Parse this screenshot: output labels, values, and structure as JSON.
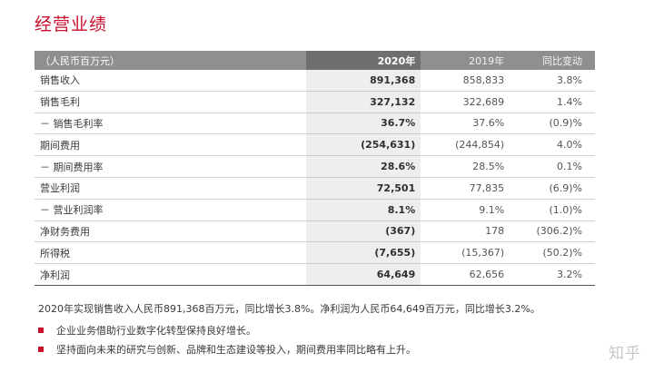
{
  "title": "经营业绩",
  "table": {
    "header": {
      "label": "（人民币百万元）",
      "cur": "2020年",
      "prev": "2019年",
      "chg": "同比变动"
    },
    "rows": [
      {
        "label": "销售收入",
        "cur": "891,368",
        "prev": "858,833",
        "chg": "3.8%"
      },
      {
        "label": "销售毛利",
        "cur": "327,132",
        "prev": "322,689",
        "chg": "1.4%"
      },
      {
        "label": "－ 销售毛利率",
        "cur": "36.7%",
        "prev": "37.6%",
        "chg": "(0.9)%"
      },
      {
        "label": "期间费用",
        "cur": "(254,631)",
        "prev": "(244,854)",
        "chg": "4.0%"
      },
      {
        "label": "－ 期间费用率",
        "cur": "28.6%",
        "prev": "28.5%",
        "chg": "0.1%"
      },
      {
        "label": "营业利润",
        "cur": "72,501",
        "prev": "77,835",
        "chg": "(6.9)%"
      },
      {
        "label": "－ 营业利润率",
        "cur": "8.1%",
        "prev": "9.1%",
        "chg": "(1.0)%"
      },
      {
        "label": "净财务费用",
        "cur": "(367)",
        "prev": "178",
        "chg": "(306.2)%"
      },
      {
        "label": "所得税",
        "cur": "(7,655)",
        "prev": "(15,367)",
        "chg": "(50.2)%"
      },
      {
        "label": "净利润",
        "cur": "64,649",
        "prev": "62,656",
        "chg": "3.2%"
      }
    ]
  },
  "summary": "2020年实现销售收入人民币891,368百万元，同比增长3.8%。净利润为人民币64,649百万元，同比增长3.2%。",
  "bullets": [
    "企业业务借助行业数字化转型保持良好增长。",
    "坚持面向未来的研究与创新、品牌和生态建设等投入，期间费用率同比略有上升。"
  ],
  "watermark": "知乎",
  "colors": {
    "accent": "#c8102e",
    "header_bg": "#8f8f8f",
    "highlight_col": "#eeeeee"
  }
}
